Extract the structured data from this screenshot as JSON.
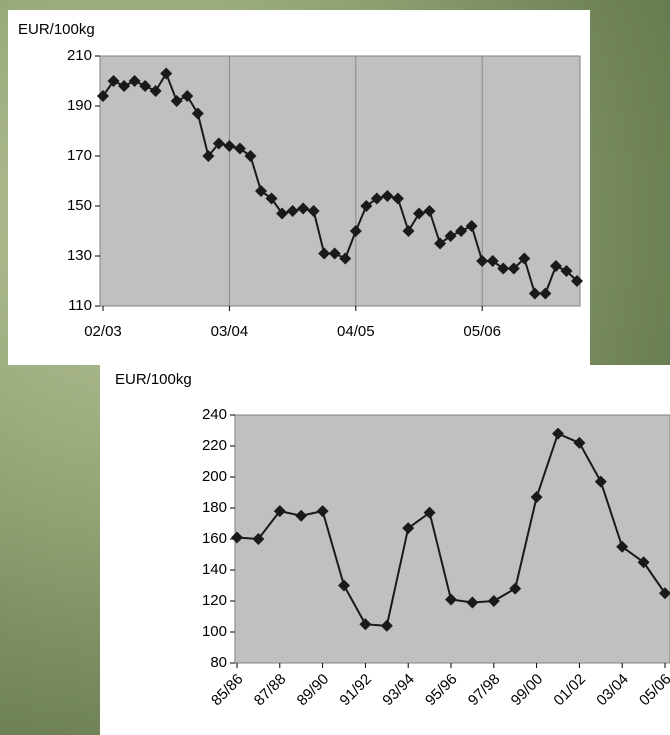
{
  "chart_data": [
    {
      "type": "line",
      "y_label": "EUR/100kg",
      "categories": [
        "02/03",
        null,
        null,
        null,
        null,
        null,
        null,
        null,
        null,
        null,
        null,
        null,
        "03/04",
        null,
        null,
        null,
        null,
        null,
        null,
        null,
        null,
        null,
        null,
        null,
        "04/05",
        null,
        null,
        null,
        null,
        null,
        null,
        null,
        null,
        null,
        null,
        null,
        "05/06",
        null,
        null,
        null,
        null,
        null,
        null,
        null,
        null,
        null
      ],
      "series": [
        {
          "color": "#1a1a1a",
          "values": [
            194,
            200,
            198,
            200,
            198,
            196,
            203,
            192,
            194,
            187,
            170,
            175,
            174,
            173,
            170,
            156,
            153,
            147,
            148,
            149,
            148,
            131,
            131,
            129,
            140,
            150,
            153,
            154,
            153,
            140,
            147,
            148,
            135,
            138,
            140,
            142,
            128,
            128,
            125,
            125,
            129,
            115,
            115,
            126,
            124,
            120
          ]
        }
      ],
      "ylim": [
        110,
        210
      ],
      "yticks": [
        110,
        130,
        150,
        170,
        190,
        210
      ],
      "grid": "x",
      "plot_color": "#c0c0c0"
    },
    {
      "type": "line",
      "y_label": "EUR/100kg",
      "categories": [
        "85/86",
        null,
        "87/88",
        null,
        "89/90",
        null,
        "91/92",
        null,
        "93/94",
        null,
        "95/96",
        null,
        "97/98",
        null,
        "99/00",
        null,
        "01/02",
        null,
        "03/04",
        null,
        "05/06"
      ],
      "series": [
        {
          "color": "#1a1a1a",
          "values": [
            161,
            160,
            178,
            175,
            178,
            130,
            105,
            104,
            167,
            177,
            121,
            119,
            120,
            128,
            187,
            228,
            222,
            197,
            155,
            145,
            125
          ]
        }
      ],
      "ylim": [
        80,
        240
      ],
      "yticks": [
        80,
        100,
        120,
        140,
        160,
        180,
        200,
        220,
        240
      ],
      "grid": "none",
      "plot_color": "#c0c0c0",
      "rotate_labels": true
    }
  ]
}
